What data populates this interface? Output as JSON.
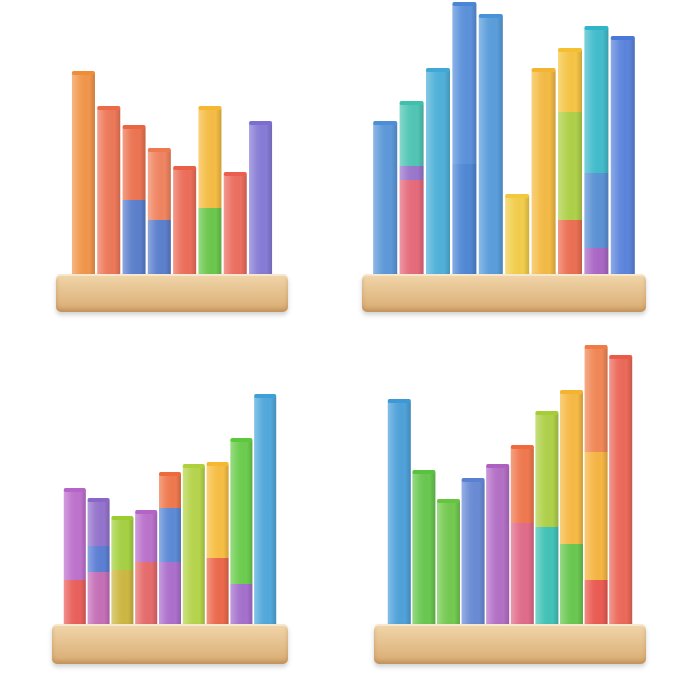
{
  "charts": [
    {
      "id": "top-left",
      "columns": [
        {
          "segments": [
            {
              "value": 205,
              "color": "#f08c38"
            }
          ]
        },
        {
          "segments": [
            {
              "value": 170,
              "color": "#ec6a48"
            }
          ]
        },
        {
          "segments": [
            {
              "value": 78,
              "color": "#4a72c8"
            },
            {
              "value": 73,
              "color": "#ea6640"
            }
          ]
        },
        {
          "segments": [
            {
              "value": 58,
              "color": "#4a72c8"
            },
            {
              "value": 70,
              "color": "#ee7850"
            }
          ]
        },
        {
          "segments": [
            {
              "value": 110,
              "color": "#ea5f48"
            }
          ]
        },
        {
          "segments": [
            {
              "value": 70,
              "color": "#5cc23a"
            },
            {
              "value": 100,
              "color": "#f5b632"
            }
          ]
        },
        {
          "segments": [
            {
              "value": 104,
              "color": "#ea5f50"
            }
          ]
        },
        {
          "segments": [
            {
              "value": 155,
              "color": "#7a6ed2"
            }
          ]
        }
      ]
    },
    {
      "id": "top-right",
      "columns": [
        {
          "segments": [
            {
              "value": 155,
              "color": "#4d8ed6"
            }
          ]
        },
        {
          "segments": [
            {
              "value": 98,
              "color": "#e35b6e"
            },
            {
              "value": 14,
              "color": "#8f68c6"
            },
            {
              "value": 63,
              "color": "#3fc0ae"
            }
          ]
        },
        {
          "segments": [
            {
              "value": 208,
              "color": "#3ea8d6"
            }
          ]
        },
        {
          "segments": [
            {
              "value": 114,
              "color": "#3e7bd0"
            },
            {
              "value": 160,
              "color": "#4a86d8"
            }
          ]
        },
        {
          "segments": [
            {
              "value": 262,
              "color": "#4893d8"
            }
          ]
        },
        {
          "segments": [
            {
              "value": 82,
              "color": "#f2c93a"
            }
          ]
        },
        {
          "segments": [
            {
              "value": 208,
              "color": "#f3b432"
            }
          ]
        },
        {
          "segments": [
            {
              "value": 58,
              "color": "#ea6040"
            },
            {
              "value": 108,
              "color": "#a6cc36"
            },
            {
              "value": 62,
              "color": "#f5bf32"
            }
          ]
        },
        {
          "segments": [
            {
              "value": 30,
              "color": "#a258c0"
            },
            {
              "value": 75,
              "color": "#4a86d0"
            },
            {
              "value": 145,
              "color": "#2fb6c6"
            }
          ]
        },
        {
          "segments": [
            {
              "value": 240,
              "color": "#4a78d8"
            }
          ]
        }
      ]
    },
    {
      "id": "bottom-left",
      "columns": [
        {
          "segments": [
            {
              "value": 48,
              "color": "#e8504a"
            },
            {
              "value": 90,
              "color": "#b764c8"
            }
          ]
        },
        {
          "segments": [
            {
              "value": 56,
              "color": "#c060b0"
            },
            {
              "value": 26,
              "color": "#4a72d0"
            },
            {
              "value": 46,
              "color": "#8a66c8"
            }
          ]
        },
        {
          "segments": [
            {
              "value": 58,
              "color": "#c8b030"
            },
            {
              "value": 52,
              "color": "#9ccc30"
            }
          ]
        },
        {
          "segments": [
            {
              "value": 66,
              "color": "#e35c5c"
            },
            {
              "value": 50,
              "color": "#b464c6"
            }
          ]
        },
        {
          "segments": [
            {
              "value": 66,
              "color": "#a460c8"
            },
            {
              "value": 54,
              "color": "#4a7ed2"
            },
            {
              "value": 34,
              "color": "#ee6a3c"
            }
          ]
        },
        {
          "segments": [
            {
              "value": 162,
              "color": "#aed03a"
            }
          ]
        },
        {
          "segments": [
            {
              "value": 70,
              "color": "#ea5a3a"
            },
            {
              "value": 94,
              "color": "#f6b830"
            }
          ]
        },
        {
          "segments": [
            {
              "value": 44,
              "color": "#9b62c8"
            },
            {
              "value": 144,
              "color": "#5cc83c"
            }
          ]
        },
        {
          "segments": [
            {
              "value": 232,
              "color": "#3fa0d8"
            }
          ]
        }
      ]
    },
    {
      "id": "bottom-right",
      "columns": [
        {
          "segments": [
            {
              "value": 227,
              "color": "#3d98d6"
            }
          ]
        },
        {
          "segments": [
            {
              "value": 156,
              "color": "#5ac23e"
            }
          ]
        },
        {
          "segments": [
            {
              "value": 127,
              "color": "#66c43e"
            }
          ]
        },
        {
          "segments": [
            {
              "value": 148,
              "color": "#5a80d0"
            }
          ]
        },
        {
          "segments": [
            {
              "value": 162,
              "color": "#ac60c0"
            }
          ]
        },
        {
          "segments": [
            {
              "value": 105,
              "color": "#dd5c7e"
            },
            {
              "value": 76,
              "color": "#ee6a3c"
            }
          ]
        },
        {
          "segments": [
            {
              "value": 101,
              "color": "#2fbcb0"
            },
            {
              "value": 114,
              "color": "#a6cc36"
            }
          ]
        },
        {
          "segments": [
            {
              "value": 84,
              "color": "#5ac23e"
            },
            {
              "value": 152,
              "color": "#f5b332"
            }
          ]
        },
        {
          "segments": [
            {
              "value": 48,
              "color": "#e84a40"
            },
            {
              "value": 128,
              "color": "#f5ae30"
            },
            {
              "value": 105,
              "color": "#ef7b45"
            }
          ]
        },
        {
          "segments": [
            {
              "value": 271,
              "color": "#ea5a48"
            }
          ]
        }
      ]
    }
  ]
}
